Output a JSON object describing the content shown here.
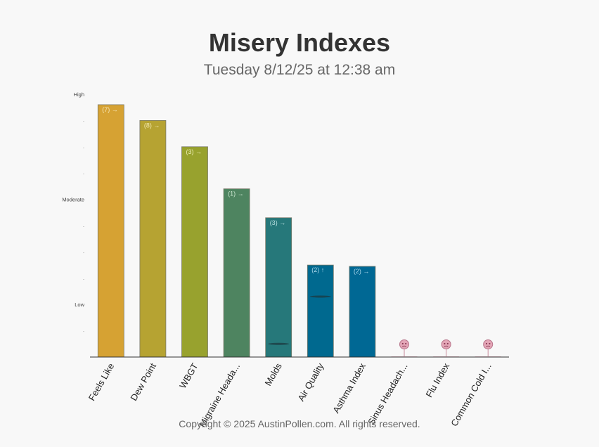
{
  "header": {
    "title": "Misery Indexes",
    "subtitle": "Tuesday 8/12/25 at 12:38 am"
  },
  "footer": {
    "copyright": "Copyright © 2025 AustinPollen.com.  All rights reserved."
  },
  "chart_data": {
    "type": "bar",
    "title": "Misery Indexes",
    "subtitle": "Tuesday 8/12/25 at 12:38 am",
    "xlabel": "",
    "ylabel": "",
    "ylim": [
      0,
      10
    ],
    "grid": false,
    "y_tick_labels": [
      {
        "value": 2,
        "label": "Low"
      },
      {
        "value": 6,
        "label": "Moderate"
      },
      {
        "value": 10,
        "label": "High"
      }
    ],
    "y_minor_ticks": [
      1,
      3,
      4,
      5,
      7,
      8,
      9
    ],
    "minor_tick_label": "-",
    "categories": [
      "Feels Like",
      "Dew Point",
      "WBGT",
      "Migraine Heada...",
      "Molds",
      "Air Quality",
      "Asthma Index",
      "Sinus Headach...",
      "Flu Index",
      "Common Cold I..."
    ],
    "values": [
      9.6,
      9.0,
      8.0,
      6.4,
      5.3,
      3.5,
      3.45,
      0.05,
      0.05,
      0.05
    ],
    "bar_labels": [
      "(7) →",
      "(8) →",
      "(3) →",
      "(1) →",
      "(3) →",
      "(2) ↑",
      "(2) →",
      "",
      "",
      ""
    ],
    "markers": [
      null,
      null,
      null,
      null,
      0.5,
      2.3,
      null,
      null,
      null,
      null
    ],
    "unavailable": [
      false,
      false,
      false,
      false,
      false,
      false,
      false,
      true,
      true,
      true
    ],
    "colors": [
      "#d6a233",
      "#b6a332",
      "#98a22e",
      "#4e8460",
      "#26787a",
      "#00698f",
      "#006894",
      "#e4a6b7",
      "#e4a6b7",
      "#e4a6b7"
    ],
    "bar_label_colors": [
      "#f6e7b8",
      "#f2e9b0",
      "#eef0b6",
      "#cbe6cf",
      "#b9e0e0",
      "#a8d6ea",
      "#a8d6ea",
      "",
      "",
      ""
    ],
    "unavailable_icon": "mood-sad-icon"
  }
}
